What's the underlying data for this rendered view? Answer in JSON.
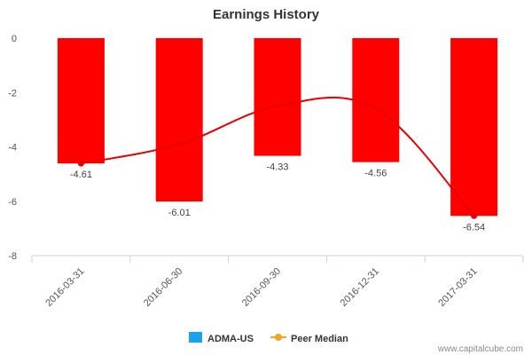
{
  "chart_data": {
    "type": "bar",
    "title": "Earnings History",
    "categories": [
      "2016-03-31",
      "2016-06-30",
      "2016-09-30",
      "2016-12-31",
      "2017-03-31"
    ],
    "series": [
      {
        "name": "ADMA-US",
        "type": "bar",
        "values": [
          -4.61,
          -6.01,
          -4.33,
          -4.56,
          -6.54
        ]
      },
      {
        "name": "Peer Median",
        "type": "line",
        "values": [
          -4.61,
          -3.9,
          -2.5,
          -2.6,
          -6.54
        ]
      }
    ],
    "data_labels": [
      "-4.61",
      "-6.01",
      "-4.33",
      "-4.56",
      "-6.54"
    ],
    "yticks": [
      "0",
      "-2",
      "-4",
      "-6",
      "-8"
    ],
    "ylim": [
      -8,
      0
    ],
    "xlabel": "",
    "ylabel": "",
    "grid": false,
    "legend_position": "bottom-center",
    "colors": {
      "bar": "#ff0000",
      "line": "#e60000",
      "legend_adma": "#1aa3ec",
      "legend_peer": "#f5a31a"
    }
  },
  "watermark": "www.capitalcube.com"
}
